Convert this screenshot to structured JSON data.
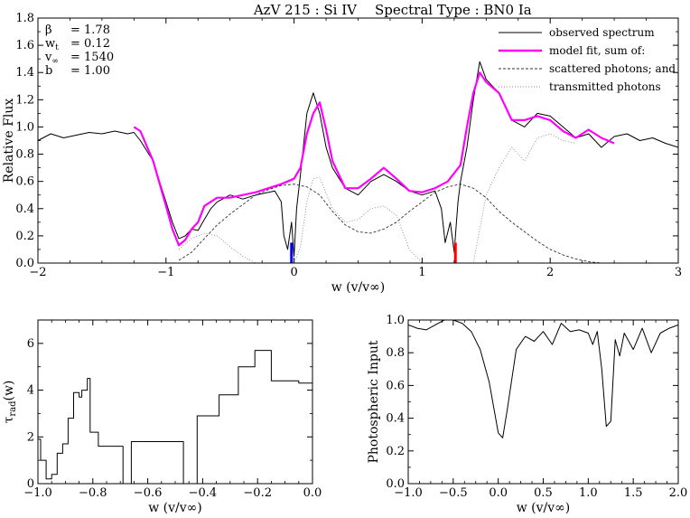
{
  "figure": {
    "title_left": "AzV 215 : Si IV",
    "title_right": "Spectral Type : BN0 Ia"
  },
  "chart_data": [
    {
      "type": "line",
      "id": "top",
      "ylabel": "Relative Flux",
      "xlabel": "w (v/v∞)",
      "xlim": [
        -2,
        3
      ],
      "ylim": [
        0,
        1.8
      ],
      "xticks": [
        -2,
        -1,
        0,
        1,
        2,
        3
      ],
      "yticks": [
        0.0,
        0.2,
        0.4,
        0.6,
        0.8,
        1.0,
        1.2,
        1.4,
        1.6,
        1.8
      ],
      "ytick_labels": [
        "0.0",
        "0.2",
        "0.4",
        "0.6",
        "0.8",
        "1.0",
        "1.2",
        "1.4",
        "1.6",
        "1.8"
      ],
      "params": [
        {
          "sym": "β",
          "eq": "=  1.78"
        },
        {
          "sym": "w",
          "sub": "t",
          "eq": "=  0.12"
        },
        {
          "sym": "v",
          "sub": "∞",
          "eq": "=  1540"
        },
        {
          "sym": "b",
          "eq": "=  1.00"
        }
      ],
      "legend": {
        "placement": "top-right",
        "entries": [
          {
            "label": "observed spectrum",
            "style": "solid",
            "color": "#000000"
          },
          {
            "label": "model fit, sum of:",
            "style": "solid",
            "color": "#ff00ff"
          },
          {
            "label": "scattered photons; and",
            "style": "dashed",
            "color": "#333333"
          },
          {
            "label": "transmitted photons",
            "style": "dotted",
            "color": "#888888"
          }
        ]
      },
      "series": [
        {
          "name": "observed spectrum",
          "x": [
            -2.0,
            -1.9,
            -1.8,
            -1.7,
            -1.6,
            -1.5,
            -1.4,
            -1.3,
            -1.25,
            -1.2,
            -1.1,
            -1.0,
            -0.95,
            -0.9,
            -0.85,
            -0.8,
            -0.75,
            -0.7,
            -0.65,
            -0.6,
            -0.5,
            -0.4,
            -0.3,
            -0.2,
            -0.15,
            -0.1,
            -0.08,
            -0.05,
            -0.02,
            0.0,
            0.02,
            0.05,
            0.1,
            0.15,
            0.2,
            0.25,
            0.3,
            0.4,
            0.5,
            0.6,
            0.7,
            0.8,
            0.9,
            1.0,
            1.1,
            1.15,
            1.18,
            1.22,
            1.25,
            1.28,
            1.3,
            1.35,
            1.4,
            1.45,
            1.5,
            1.6,
            1.7,
            1.8,
            1.9,
            2.0,
            2.1,
            2.2,
            2.3,
            2.4,
            2.5,
            2.6,
            2.7,
            2.8,
            2.9,
            3.0
          ],
          "y": [
            0.9,
            0.95,
            0.92,
            0.94,
            0.96,
            0.95,
            0.97,
            0.95,
            0.96,
            0.9,
            0.75,
            0.45,
            0.3,
            0.18,
            0.2,
            0.25,
            0.24,
            0.32,
            0.4,
            0.45,
            0.5,
            0.47,
            0.5,
            0.52,
            0.53,
            0.45,
            0.2,
            0.1,
            0.3,
            0.05,
            0.4,
            0.65,
            1.1,
            1.25,
            1.1,
            0.85,
            0.7,
            0.55,
            0.5,
            0.6,
            0.65,
            0.6,
            0.53,
            0.5,
            0.53,
            0.4,
            0.15,
            0.3,
            0.08,
            0.45,
            0.6,
            0.85,
            1.2,
            1.48,
            1.35,
            1.25,
            1.05,
            1.0,
            1.1,
            1.08,
            1.0,
            0.92,
            0.95,
            0.85,
            0.93,
            0.95,
            0.9,
            0.92,
            0.88,
            0.85
          ]
        },
        {
          "name": "model fit, sum of:",
          "x": [
            -1.25,
            -1.2,
            -1.1,
            -1.0,
            -0.95,
            -0.9,
            -0.85,
            -0.8,
            -0.75,
            -0.7,
            -0.6,
            -0.5,
            -0.4,
            -0.3,
            -0.2,
            -0.1,
            0.0,
            0.05,
            0.1,
            0.15,
            0.2,
            0.25,
            0.3,
            0.4,
            0.5,
            0.6,
            0.7,
            0.8,
            0.9,
            1.0,
            1.1,
            1.2,
            1.3,
            1.35,
            1.4,
            1.45,
            1.5,
            1.6,
            1.7,
            1.8,
            1.9,
            2.0,
            2.1,
            2.2,
            2.3,
            2.4,
            2.5
          ],
          "y": [
            1.0,
            0.97,
            0.75,
            0.42,
            0.25,
            0.13,
            0.17,
            0.25,
            0.3,
            0.42,
            0.48,
            0.48,
            0.5,
            0.52,
            0.55,
            0.58,
            0.62,
            0.7,
            0.95,
            1.1,
            1.18,
            0.98,
            0.75,
            0.55,
            0.55,
            0.62,
            0.7,
            0.62,
            0.53,
            0.52,
            0.55,
            0.6,
            0.72,
            1.0,
            1.25,
            1.4,
            1.33,
            1.25,
            1.05,
            1.05,
            1.08,
            1.05,
            0.97,
            0.92,
            0.98,
            0.92,
            0.88
          ]
        },
        {
          "name": "scattered photons; and",
          "x": [
            -0.9,
            -0.8,
            -0.7,
            -0.6,
            -0.5,
            -0.4,
            -0.3,
            -0.2,
            -0.1,
            0.0,
            0.1,
            0.2,
            0.3,
            0.4,
            0.5,
            0.6,
            0.7,
            0.8,
            0.9,
            1.0,
            1.1,
            1.2,
            1.3,
            1.4,
            1.5,
            1.6,
            1.7,
            1.8,
            1.9,
            2.0,
            2.1,
            2.2,
            2.3,
            2.4,
            2.5
          ],
          "y": [
            0.02,
            0.08,
            0.18,
            0.28,
            0.36,
            0.43,
            0.5,
            0.54,
            0.57,
            0.58,
            0.56,
            0.5,
            0.38,
            0.28,
            0.23,
            0.22,
            0.25,
            0.3,
            0.38,
            0.45,
            0.52,
            0.56,
            0.58,
            0.55,
            0.48,
            0.38,
            0.3,
            0.23,
            0.16,
            0.1,
            0.06,
            0.03,
            0.01,
            0.0,
            0.0
          ]
        },
        {
          "name": "transmitted photons",
          "x": [
            -0.9,
            -0.8,
            -0.7,
            -0.6,
            -0.5,
            -0.4,
            -0.3,
            -0.2,
            -0.1,
            0.0,
            0.05,
            0.1,
            0.15,
            0.2,
            0.3,
            0.4,
            0.5,
            0.6,
            0.7,
            0.8,
            0.9,
            1.0,
            1.1,
            1.2,
            1.3,
            1.4,
            1.5,
            1.6,
            1.7,
            1.8,
            1.9,
            2.0,
            2.1,
            2.2
          ],
          "y": [
            0.1,
            0.18,
            0.22,
            0.2,
            0.12,
            0.05,
            0.0,
            0.0,
            0.0,
            0.0,
            0.12,
            0.45,
            0.62,
            0.63,
            0.4,
            0.3,
            0.32,
            0.4,
            0.42,
            0.35,
            0.1,
            0.0,
            0.0,
            0.0,
            0.0,
            0.0,
            0.5,
            0.7,
            0.85,
            0.75,
            0.92,
            0.95,
            0.9,
            0.88
          ]
        }
      ],
      "markers": [
        {
          "x": -0.02,
          "y": 0.15,
          "color": "#0000ff"
        },
        {
          "x": 1.26,
          "y": 0.15,
          "color": "#ff0000"
        }
      ]
    },
    {
      "type": "line",
      "id": "bottom-left",
      "ylabel": "τrad(w)",
      "ylabel_main": "τ",
      "ylabel_sub": "rad",
      "ylabel_tail": "(w)",
      "xlabel": "w (v/v∞)",
      "xlim": [
        -1.0,
        0.0
      ],
      "ylim": [
        0,
        7
      ],
      "xticks": [
        -1.0,
        -0.8,
        -0.6,
        -0.4,
        -0.2,
        0.0
      ],
      "xtick_labels": [
        "−1.0",
        "−0.8",
        "−0.6",
        "−0.4",
        "−0.2",
        "0.0"
      ],
      "yticks": [
        0,
        2,
        4,
        6
      ],
      "ytick_labels": [
        "0",
        "2",
        "4",
        "6"
      ],
      "series": [
        {
          "name": "",
          "x": [
            -1.0,
            -0.99,
            -0.99,
            -0.97,
            -0.97,
            -0.95,
            -0.95,
            -0.93,
            -0.93,
            -0.91,
            -0.91,
            -0.89,
            -0.89,
            -0.87,
            -0.87,
            -0.85,
            -0.85,
            -0.84,
            -0.84,
            -0.82,
            -0.82,
            -0.81,
            -0.81,
            -0.78,
            -0.78,
            -0.74,
            -0.74,
            -0.69,
            -0.69,
            -0.68,
            -0.68,
            -0.66,
            -0.66,
            -0.47,
            -0.47,
            -0.42,
            -0.42,
            -0.34,
            -0.34,
            -0.27,
            -0.27,
            -0.21,
            -0.21,
            -0.15,
            -0.15,
            -0.05,
            -0.05,
            0.0
          ],
          "y": [
            1.9,
            1.9,
            1.0,
            1.0,
            0.2,
            0.2,
            0.4,
            0.4,
            1.3,
            1.3,
            1.7,
            1.7,
            2.8,
            2.8,
            3.9,
            3.9,
            3.7,
            3.7,
            4.0,
            4.0,
            4.5,
            4.5,
            2.2,
            2.2,
            1.6,
            1.6,
            1.6,
            1.6,
            0.0,
            0.0,
            0.0,
            0.0,
            1.8,
            1.8,
            0.0,
            0.0,
            2.9,
            2.9,
            3.8,
            3.8,
            5.0,
            5.0,
            5.7,
            5.7,
            4.4,
            4.4,
            4.3,
            4.3
          ]
        }
      ]
    },
    {
      "type": "line",
      "id": "bottom-right",
      "ylabel": "Photospheric Input",
      "xlabel": "w (v/v∞)",
      "xlim": [
        -1.0,
        2.0
      ],
      "ylim": [
        0,
        1.0
      ],
      "xticks": [
        -1.0,
        -0.5,
        0.0,
        0.5,
        1.0,
        1.5,
        2.0
      ],
      "xtick_labels": [
        "−1.0",
        "−0.5",
        "0.0",
        "0.5",
        "1.0",
        "1.5",
        "2.0"
      ],
      "yticks": [
        0.0,
        0.2,
        0.4,
        0.6,
        0.8,
        1.0
      ],
      "ytick_labels": [
        "0.0",
        "0.2",
        "0.4",
        "0.6",
        "0.8",
        "1.0"
      ],
      "series": [
        {
          "name": "",
          "x": [
            -1.0,
            -0.9,
            -0.8,
            -0.7,
            -0.6,
            -0.5,
            -0.4,
            -0.3,
            -0.2,
            -0.1,
            0.0,
            0.05,
            0.1,
            0.2,
            0.3,
            0.4,
            0.5,
            0.6,
            0.7,
            0.8,
            0.9,
            1.0,
            1.05,
            1.1,
            1.15,
            1.2,
            1.25,
            1.3,
            1.35,
            1.4,
            1.5,
            1.6,
            1.7,
            1.8,
            1.9,
            2.0
          ],
          "y": [
            0.97,
            0.95,
            0.94,
            0.97,
            1.0,
            1.0,
            0.98,
            0.93,
            0.82,
            0.62,
            0.31,
            0.28,
            0.45,
            0.82,
            0.9,
            0.87,
            0.93,
            0.85,
            0.98,
            0.93,
            0.94,
            0.92,
            0.85,
            0.93,
            0.7,
            0.35,
            0.38,
            0.88,
            0.78,
            0.92,
            0.82,
            0.95,
            0.8,
            0.92,
            0.95,
            0.97
          ]
        }
      ]
    }
  ]
}
